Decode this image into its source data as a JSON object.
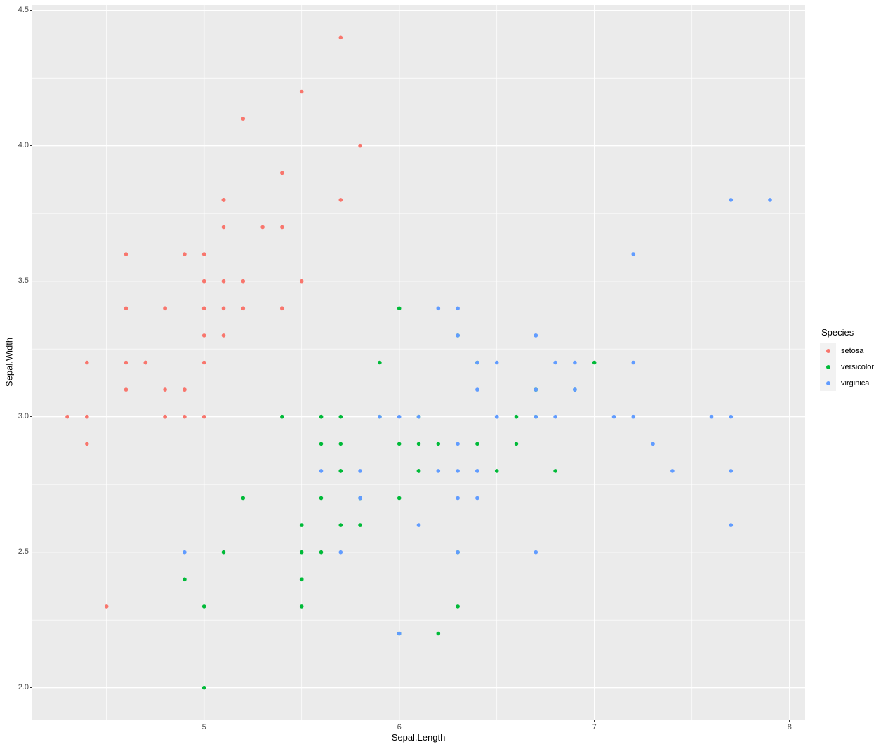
{
  "chart_data": {
    "type": "scatter",
    "title": "",
    "xlabel": "Sepal.Length",
    "ylabel": "Sepal.Width",
    "xlim": [
      4.12,
      8.08
    ],
    "ylim": [
      1.88,
      4.52
    ],
    "grid": true,
    "panel_background": "#EBEBEB",
    "gridline_color": "#FFFFFF",
    "axis_text_color": "#4D4D4D",
    "x_ticks": [
      {
        "value": 5,
        "label": "5"
      },
      {
        "value": 6,
        "label": "6"
      },
      {
        "value": 7,
        "label": "7"
      },
      {
        "value": 8,
        "label": "8"
      }
    ],
    "y_ticks": [
      {
        "value": 2.0,
        "label": "2.0"
      },
      {
        "value": 2.5,
        "label": "2.5"
      },
      {
        "value": 3.0,
        "label": "3.0"
      },
      {
        "value": 3.5,
        "label": "3.5"
      },
      {
        "value": 4.0,
        "label": "4.0"
      },
      {
        "value": 4.5,
        "label": "4.5"
      }
    ],
    "x_minor_ticks": [
      4.5,
      5.5,
      6.5,
      7.5
    ],
    "y_minor_ticks": [
      2.25,
      2.75,
      3.25,
      3.75,
      4.25
    ],
    "legend": {
      "title": "Species",
      "position": "right",
      "key_background": "#F2F2F2"
    },
    "series": [
      {
        "name": "setosa",
        "color": "#F8766D",
        "points": [
          [
            5.1,
            3.5
          ],
          [
            4.9,
            3.0
          ],
          [
            4.7,
            3.2
          ],
          [
            4.6,
            3.1
          ],
          [
            5.0,
            3.6
          ],
          [
            5.4,
            3.9
          ],
          [
            4.6,
            3.4
          ],
          [
            5.0,
            3.4
          ],
          [
            4.4,
            2.9
          ],
          [
            4.9,
            3.1
          ],
          [
            5.4,
            3.7
          ],
          [
            4.8,
            3.4
          ],
          [
            4.8,
            3.0
          ],
          [
            4.3,
            3.0
          ],
          [
            5.8,
            4.0
          ],
          [
            5.7,
            4.4
          ],
          [
            5.4,
            3.9
          ],
          [
            5.1,
            3.5
          ],
          [
            5.7,
            3.8
          ],
          [
            5.1,
            3.8
          ],
          [
            5.4,
            3.4
          ],
          [
            5.1,
            3.7
          ],
          [
            4.6,
            3.6
          ],
          [
            5.1,
            3.3
          ],
          [
            4.8,
            3.4
          ],
          [
            5.0,
            3.0
          ],
          [
            5.0,
            3.4
          ],
          [
            5.2,
            3.5
          ],
          [
            5.2,
            3.4
          ],
          [
            4.7,
            3.2
          ],
          [
            4.8,
            3.1
          ],
          [
            5.4,
            3.4
          ],
          [
            5.2,
            4.1
          ],
          [
            5.5,
            4.2
          ],
          [
            4.9,
            3.1
          ],
          [
            5.0,
            3.2
          ],
          [
            5.5,
            3.5
          ],
          [
            4.9,
            3.6
          ],
          [
            4.4,
            3.0
          ],
          [
            5.1,
            3.4
          ],
          [
            5.0,
            3.5
          ],
          [
            4.5,
            2.3
          ],
          [
            4.4,
            3.2
          ],
          [
            5.0,
            3.5
          ],
          [
            5.1,
            3.8
          ],
          [
            4.8,
            3.0
          ],
          [
            5.1,
            3.8
          ],
          [
            4.6,
            3.2
          ],
          [
            5.3,
            3.7
          ],
          [
            5.0,
            3.3
          ]
        ]
      },
      {
        "name": "versicolor",
        "color": "#00BA38",
        "points": [
          [
            7.0,
            3.2
          ],
          [
            6.4,
            3.2
          ],
          [
            6.9,
            3.1
          ],
          [
            5.5,
            2.3
          ],
          [
            6.5,
            2.8
          ],
          [
            5.7,
            2.8
          ],
          [
            6.3,
            3.3
          ],
          [
            4.9,
            2.4
          ],
          [
            6.6,
            2.9
          ],
          [
            5.2,
            2.7
          ],
          [
            5.0,
            2.0
          ],
          [
            5.9,
            3.0
          ],
          [
            6.0,
            2.2
          ],
          [
            6.1,
            2.9
          ],
          [
            5.6,
            2.9
          ],
          [
            6.7,
            3.1
          ],
          [
            5.6,
            3.0
          ],
          [
            5.8,
            2.7
          ],
          [
            6.2,
            2.2
          ],
          [
            5.6,
            2.5
          ],
          [
            5.9,
            3.2
          ],
          [
            6.1,
            2.8
          ],
          [
            6.3,
            2.5
          ],
          [
            6.1,
            2.8
          ],
          [
            6.4,
            2.9
          ],
          [
            6.6,
            3.0
          ],
          [
            6.8,
            2.8
          ],
          [
            6.7,
            3.0
          ],
          [
            6.0,
            2.9
          ],
          [
            5.7,
            2.6
          ],
          [
            5.5,
            2.4
          ],
          [
            5.5,
            2.4
          ],
          [
            5.8,
            2.7
          ],
          [
            6.0,
            2.7
          ],
          [
            5.4,
            3.0
          ],
          [
            6.0,
            3.4
          ],
          [
            6.7,
            3.1
          ],
          [
            6.3,
            2.3
          ],
          [
            5.6,
            3.0
          ],
          [
            5.5,
            2.5
          ],
          [
            5.5,
            2.6
          ],
          [
            6.1,
            3.0
          ],
          [
            5.8,
            2.6
          ],
          [
            5.0,
            2.3
          ],
          [
            5.6,
            2.7
          ],
          [
            5.7,
            3.0
          ],
          [
            5.7,
            2.9
          ],
          [
            6.2,
            2.9
          ],
          [
            5.1,
            2.5
          ],
          [
            5.7,
            2.8
          ]
        ]
      },
      {
        "name": "virginica",
        "color": "#619CFF",
        "points": [
          [
            6.3,
            3.3
          ],
          [
            5.8,
            2.7
          ],
          [
            7.1,
            3.0
          ],
          [
            6.3,
            2.9
          ],
          [
            6.5,
            3.0
          ],
          [
            7.6,
            3.0
          ],
          [
            4.9,
            2.5
          ],
          [
            7.3,
            2.9
          ],
          [
            6.7,
            2.5
          ],
          [
            7.2,
            3.6
          ],
          [
            6.5,
            3.2
          ],
          [
            6.4,
            2.7
          ],
          [
            6.8,
            3.0
          ],
          [
            5.7,
            2.5
          ],
          [
            5.8,
            2.8
          ],
          [
            6.4,
            3.2
          ],
          [
            6.5,
            3.0
          ],
          [
            7.7,
            3.8
          ],
          [
            7.7,
            2.6
          ],
          [
            6.0,
            2.2
          ],
          [
            6.9,
            3.2
          ],
          [
            5.6,
            2.8
          ],
          [
            7.7,
            2.8
          ],
          [
            6.3,
            2.7
          ],
          [
            6.7,
            3.3
          ],
          [
            7.2,
            3.2
          ],
          [
            6.2,
            2.8
          ],
          [
            6.1,
            3.0
          ],
          [
            6.4,
            2.8
          ],
          [
            7.2,
            3.0
          ],
          [
            7.4,
            2.8
          ],
          [
            7.9,
            3.8
          ],
          [
            6.4,
            2.8
          ],
          [
            6.3,
            2.8
          ],
          [
            6.1,
            2.6
          ],
          [
            7.7,
            3.0
          ],
          [
            6.3,
            3.4
          ],
          [
            6.4,
            3.1
          ],
          [
            6.0,
            3.0
          ],
          [
            6.9,
            3.1
          ],
          [
            6.7,
            3.1
          ],
          [
            6.9,
            3.1
          ],
          [
            5.8,
            2.7
          ],
          [
            6.8,
            3.2
          ],
          [
            6.7,
            3.3
          ],
          [
            6.7,
            3.0
          ],
          [
            6.3,
            2.5
          ],
          [
            6.5,
            3.0
          ],
          [
            6.2,
            3.4
          ],
          [
            5.9,
            3.0
          ]
        ]
      }
    ]
  }
}
